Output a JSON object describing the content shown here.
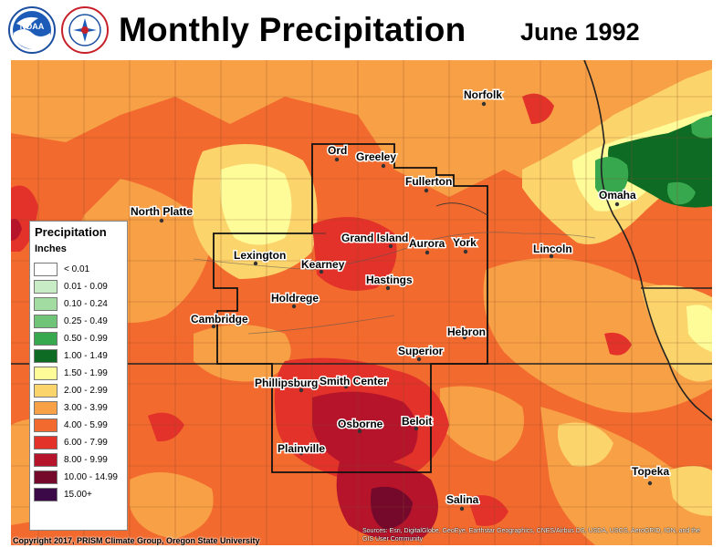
{
  "title": "Monthly Precipitation",
  "date": "June 1992",
  "logos": [
    {
      "name": "noaa-logo",
      "text": "NOAA"
    },
    {
      "name": "nws-logo",
      "text": "NATIONAL WEATHER SERVICE"
    }
  ],
  "legend": {
    "title": "Precipitation",
    "units": "Inches",
    "items": [
      {
        "label": "< 0.01",
        "color": "#ffffff"
      },
      {
        "label": "0.01 - 0.09",
        "color": "#c8ecc6"
      },
      {
        "label": "0.10 - 0.24",
        "color": "#a2dca0"
      },
      {
        "label": "0.25 - 0.49",
        "color": "#6fc478"
      },
      {
        "label": "0.50 - 0.99",
        "color": "#38a84e"
      },
      {
        "label": "1.00 - 1.49",
        "color": "#0e6b23"
      },
      {
        "label": "1.50 - 1.99",
        "color": "#fefc99"
      },
      {
        "label": "2.00 - 2.99",
        "color": "#fcd46c"
      },
      {
        "label": "3.00 - 3.99",
        "color": "#f8a045"
      },
      {
        "label": "4.00 - 5.99",
        "color": "#f26a2e"
      },
      {
        "label": "6.00 - 7.99",
        "color": "#e3322a"
      },
      {
        "label": "8.00 - 9.99",
        "color": "#b5142b"
      },
      {
        "label": "10.00 - 14.99",
        "color": "#74092b"
      },
      {
        "label": "15.00+",
        "color": "#3b0848"
      }
    ]
  },
  "cities": [
    {
      "name": "Norfolk"
    },
    {
      "name": "Ord"
    },
    {
      "name": "Greeley"
    },
    {
      "name": "Fullerton"
    },
    {
      "name": "Omaha"
    },
    {
      "name": "North Platte"
    },
    {
      "name": "Grand Island"
    },
    {
      "name": "Aurora"
    },
    {
      "name": "York"
    },
    {
      "name": "Lincoln"
    },
    {
      "name": "Lexington"
    },
    {
      "name": "Kearney"
    },
    {
      "name": "Hastings"
    },
    {
      "name": "Holdrege"
    },
    {
      "name": "Cambridge"
    },
    {
      "name": "Hebron"
    },
    {
      "name": "Superior"
    },
    {
      "name": "Phillipsburg"
    },
    {
      "name": "Smith Center"
    },
    {
      "name": "Osborne"
    },
    {
      "name": "Beloit"
    },
    {
      "name": "Plainville"
    },
    {
      "name": "Topeka"
    },
    {
      "name": "Salina"
    }
  ],
  "copyright": "Copyright 2017, PRISM Climate Group, Oregon State University",
  "sources": "Sources: Esri, DigitalGlobe, GeoEye, Earthstar Geographics, CNES/Airbus DS, USDA, USGS, AeroGRID, IGN, and the GIS User Community"
}
